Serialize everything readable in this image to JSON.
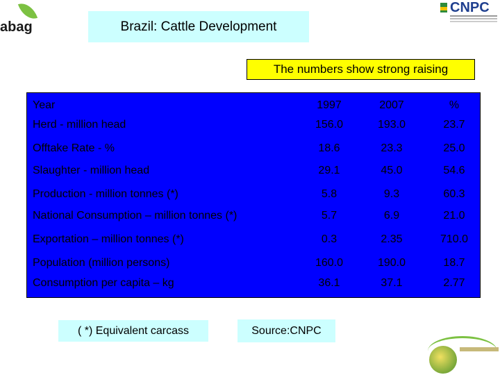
{
  "header": {
    "left_logo_text": "abag",
    "title": "Brazil: Cattle Development",
    "right_logo_text": "CNPC"
  },
  "subtitle": "The numbers show strong raising",
  "table": {
    "headers": [
      "Year",
      "1997",
      "2007",
      "%"
    ],
    "rows": [
      {
        "label": "Herd - million head",
        "v1997": "156.0",
        "v2007": "193.0",
        "pct": "23.7"
      },
      {
        "label": "Offtake Rate - %",
        "v1997": "18.6",
        "v2007": "23.3",
        "pct": "25.0"
      },
      {
        "label": "Slaughter - million head",
        "v1997": "29.1",
        "v2007": "45.0",
        "pct": "54.6"
      },
      {
        "label": "Production - million tonnes  (*)",
        "v1997": "5.8",
        "v2007": "9.3",
        "pct": "60.3"
      },
      {
        "label": "National Consumption – million tonnes (*)",
        "v1997": "5.7",
        "v2007": "6.9",
        "pct": "21.0"
      },
      {
        "label": "Exportation – million tonnes (*)",
        "v1997": "0.3",
        "v2007": "2.35",
        "pct": "710.0"
      },
      {
        "label": "Population (million persons)",
        "v1997": "160.0",
        "v2007": "190.0",
        "pct": "18.7"
      },
      {
        "label": "Consumption per capita – kg",
        "v1997": "36.1",
        "v2007": "37.1",
        "pct": "2.77"
      }
    ]
  },
  "footnote": "( *) Equivalent carcass",
  "source": "Source:CNPC",
  "colors": {
    "title_bg": "#ccffff",
    "subtitle_bg": "#ffff00",
    "table_bg": "#0000ff"
  }
}
